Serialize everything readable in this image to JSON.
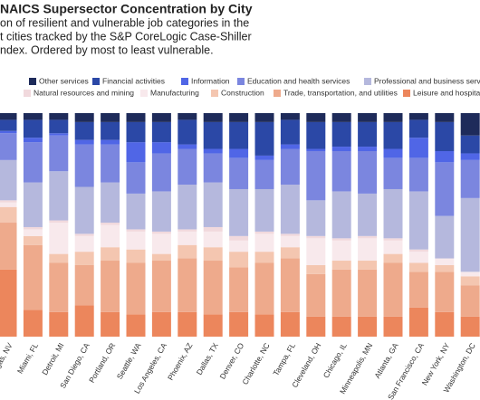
{
  "chart_data": {
    "type": "stacked_bar",
    "title": "NAICS Supersector Concentration by City",
    "subtitle": [
      "on of resilient and vulnerable job categories in the",
      "t cities tracked by the S&P CoreLogic Case-Shiller",
      "ndex. Ordered by most to least vulnerable."
    ],
    "categories": [
      "Las Vegas, NV",
      "Miami, FL",
      "Detroit, MI",
      "San Diego, CA",
      "Portland, OR",
      "Seattle, WA",
      "Los Angeles, CA",
      "Phoenix, AZ",
      "Dallas, TX",
      "Denver, CO",
      "Charlotte, NC",
      "Tampa, FL",
      "Cleveland, OH",
      "Chicago, IL",
      "Minneapolis, MN",
      "Atlanta, GA",
      "San Francisco, CA",
      "New York, NY",
      "Washington, DC"
    ],
    "ylim": [
      0,
      100
    ],
    "series": [
      {
        "name": "Leisure and hospitality",
        "color": "#ec865c",
        "values": [
          30,
          12,
          11,
          14,
          11,
          10,
          11,
          11,
          10,
          11,
          10,
          11,
          9,
          9,
          9,
          9,
          13,
          11,
          9
        ]
      },
      {
        "name": "Trade, transportation, and utilities",
        "color": "#eeaa8c",
        "values": [
          21,
          29,
          22,
          18,
          23,
          23,
          23,
          24,
          24,
          20,
          23,
          24,
          19,
          21,
          21,
          24,
          16,
          18,
          14
        ]
      },
      {
        "name": "Construction",
        "color": "#f4c6b0",
        "values": [
          7,
          4,
          4,
          6,
          6,
          6,
          3,
          6,
          6,
          7,
          5,
          5,
          4,
          4,
          4,
          4,
          4,
          3,
          4
        ]
      },
      {
        "name": "Manufacturing",
        "color": "#f8e9ec",
        "values": [
          2,
          3,
          14,
          7,
          10,
          8,
          9,
          6,
          7,
          5,
          8,
          5,
          12,
          9,
          10,
          6,
          5,
          3,
          2
        ]
      },
      {
        "name": "Natural resources and mining",
        "color": "#f1d9dd",
        "values": [
          1,
          1,
          1,
          1,
          1,
          1,
          1,
          1,
          2,
          2,
          1,
          1,
          1,
          1,
          1,
          1,
          1,
          0,
          0
        ]
      },
      {
        "name": "Professional and business services",
        "color": "#b5b8dd",
        "values": [
          18,
          20,
          22,
          21,
          18,
          16,
          18,
          20,
          20,
          21,
          19,
          22,
          16,
          21,
          19,
          22,
          26,
          19,
          33
        ]
      },
      {
        "name": "Education and health services",
        "color": "#7b86df",
        "values": [
          12,
          18,
          16,
          19,
          17,
          14,
          17,
          16,
          13,
          14,
          13,
          16,
          22,
          18,
          19,
          14,
          15,
          24,
          17
        ]
      },
      {
        "name": "Information",
        "color": "#5066e6",
        "values": [
          1,
          2,
          1,
          2,
          2,
          9,
          5,
          2,
          2,
          4,
          2,
          2,
          1,
          2,
          2,
          4,
          9,
          5,
          3
        ]
      },
      {
        "name": "Financial activities",
        "color": "#2b48a6",
        "values": [
          5,
          8,
          6,
          8,
          8,
          9,
          9,
          11,
          12,
          12,
          15,
          11,
          12,
          11,
          11,
          12,
          8,
          13,
          8
        ]
      },
      {
        "name": "Other services",
        "color": "#1e2b5a",
        "values": [
          3,
          3,
          3,
          4,
          4,
          4,
          4,
          3,
          4,
          4,
          4,
          3,
          4,
          4,
          4,
          4,
          3,
          4,
          10
        ]
      }
    ]
  }
}
